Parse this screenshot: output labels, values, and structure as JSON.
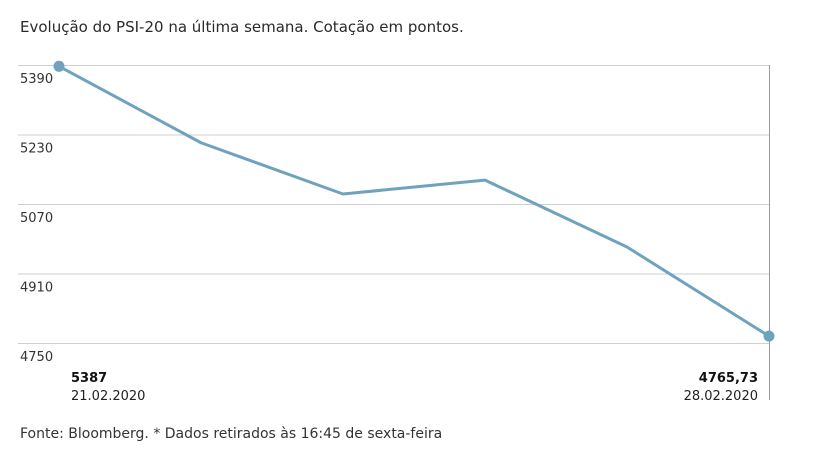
{
  "title": "Evolução do PSI-20 na última semana. Cotação em pontos.",
  "source": "Fonte: Bloomberg.  * Dados retirados às 16:45 de sexta-feira",
  "start_label": {
    "value": "5387",
    "date": "21.02.2020"
  },
  "end_label": {
    "value": "4765,73",
    "date": "28.02.2020"
  },
  "colors": {
    "line": "#6fa3bd",
    "grid": "#cfcfcf",
    "axis": "#9a9a9a"
  },
  "chart_data": {
    "type": "line",
    "title": "Evolução do PSI-20 na última semana. Cotação em pontos.",
    "xlabel": "",
    "ylabel": "",
    "x": [
      "21.02.2020",
      "",
      "",
      "",
      "",
      "28.02.2020"
    ],
    "series": [
      {
        "values": [
          5387,
          5211,
          5093,
          5125,
          4971,
          4765.73
        ]
      }
    ],
    "yticks": [
      "5390",
      "5230",
      "5070",
      "4910",
      "4750"
    ],
    "ytick_values": [
      5390,
      5230,
      5070,
      4910,
      4750
    ],
    "ylim": [
      4750,
      5390
    ],
    "grid": true
  }
}
